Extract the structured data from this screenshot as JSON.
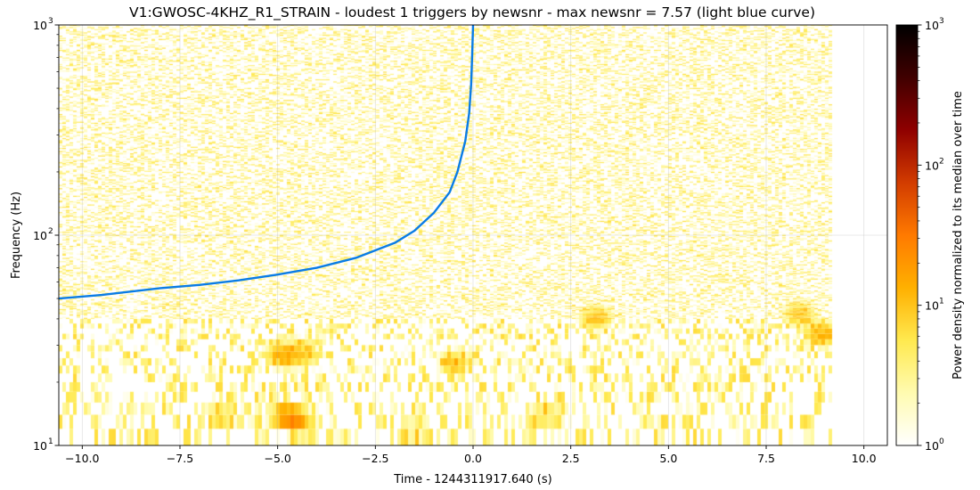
{
  "chart_data": {
    "type": "heatmap",
    "title": "V1:GWOSC-4KHZ_R1_STRAIN - loudest 1 triggers by newsnr - max newsnr = 7.57 (light blue curve)",
    "xlabel": "Time - 1244311917.640 (s)",
    "ylabel": "Frequency (Hz)",
    "xlim": [
      -10.6,
      10.6
    ],
    "ylim": [
      10,
      1000
    ],
    "yscale": "log",
    "x_ticks": [
      {
        "value": -10.0,
        "label": "−10.0"
      },
      {
        "value": -7.5,
        "label": "−7.5"
      },
      {
        "value": -5.0,
        "label": "−5.0"
      },
      {
        "value": -2.5,
        "label": "−2.5"
      },
      {
        "value": 0.0,
        "label": "0.0"
      },
      {
        "value": 2.5,
        "label": "2.5"
      },
      {
        "value": 5.0,
        "label": "5.0"
      },
      {
        "value": 7.5,
        "label": "7.5"
      },
      {
        "value": 10.0,
        "label": "10.0"
      }
    ],
    "y_ticks": [
      {
        "value": 10,
        "base": "10",
        "exp": "1"
      },
      {
        "value": 100,
        "base": "10",
        "exp": "2"
      },
      {
        "value": 1000,
        "base": "10",
        "exp": "3"
      }
    ],
    "grid": true,
    "spectrogram": {
      "time_range": [
        -10.6,
        9.1
      ],
      "description_levels": "power density values mostly 1–6, occasional hot spots ~10–20 near t=-4.8s, 15–40 Hz"
    },
    "hotspots": [
      {
        "t": -4.8,
        "f": 13,
        "level": 20
      },
      {
        "t": -4.6,
        "f": 12,
        "level": 18
      },
      {
        "t": -4.9,
        "f": 26,
        "level": 15
      },
      {
        "t": -4.4,
        "f": 26,
        "level": 10
      },
      {
        "t": -0.5,
        "f": 24,
        "level": 10
      },
      {
        "t": 3.1,
        "f": 40,
        "level": 12
      },
      {
        "t": 8.3,
        "f": 42,
        "level": 10
      },
      {
        "t": 8.9,
        "f": 33,
        "level": 14
      },
      {
        "t": 1.8,
        "f": 13,
        "level": 8
      },
      {
        "t": -6.5,
        "f": 13,
        "level": 8
      },
      {
        "t": -1.5,
        "f": 11,
        "level": 7
      }
    ],
    "series": [
      {
        "type": "line",
        "color": "#0a7ce6",
        "x": [
          -10.6,
          -9.5,
          -8.0,
          -7.0,
          -6.0,
          -5.0,
          -4.0,
          -3.0,
          -2.0,
          -1.5,
          -1.0,
          -0.6,
          -0.4,
          -0.2,
          -0.1,
          -0.05,
          -0.02,
          0.0
        ],
        "y": [
          50,
          52,
          56,
          58,
          61,
          65,
          70,
          78,
          92,
          105,
          128,
          160,
          200,
          280,
          380,
          520,
          750,
          1000
        ]
      }
    ],
    "colorbar": {
      "label": "Power density normalized to its median over time",
      "scale": "log",
      "range": [
        1,
        1000
      ],
      "colormap": [
        "#ffffff",
        "#fffbb0",
        "#ffe94f",
        "#ffb000",
        "#ff7a00",
        "#d23c00",
        "#8f0000",
        "#400000",
        "#000000"
      ],
      "ticks": [
        {
          "value": 1,
          "base": "10",
          "exp": "0"
        },
        {
          "value": 10,
          "base": "10",
          "exp": "1"
        },
        {
          "value": 100,
          "base": "10",
          "exp": "2"
        },
        {
          "value": 1000,
          "base": "10",
          "exp": "3"
        }
      ]
    }
  }
}
